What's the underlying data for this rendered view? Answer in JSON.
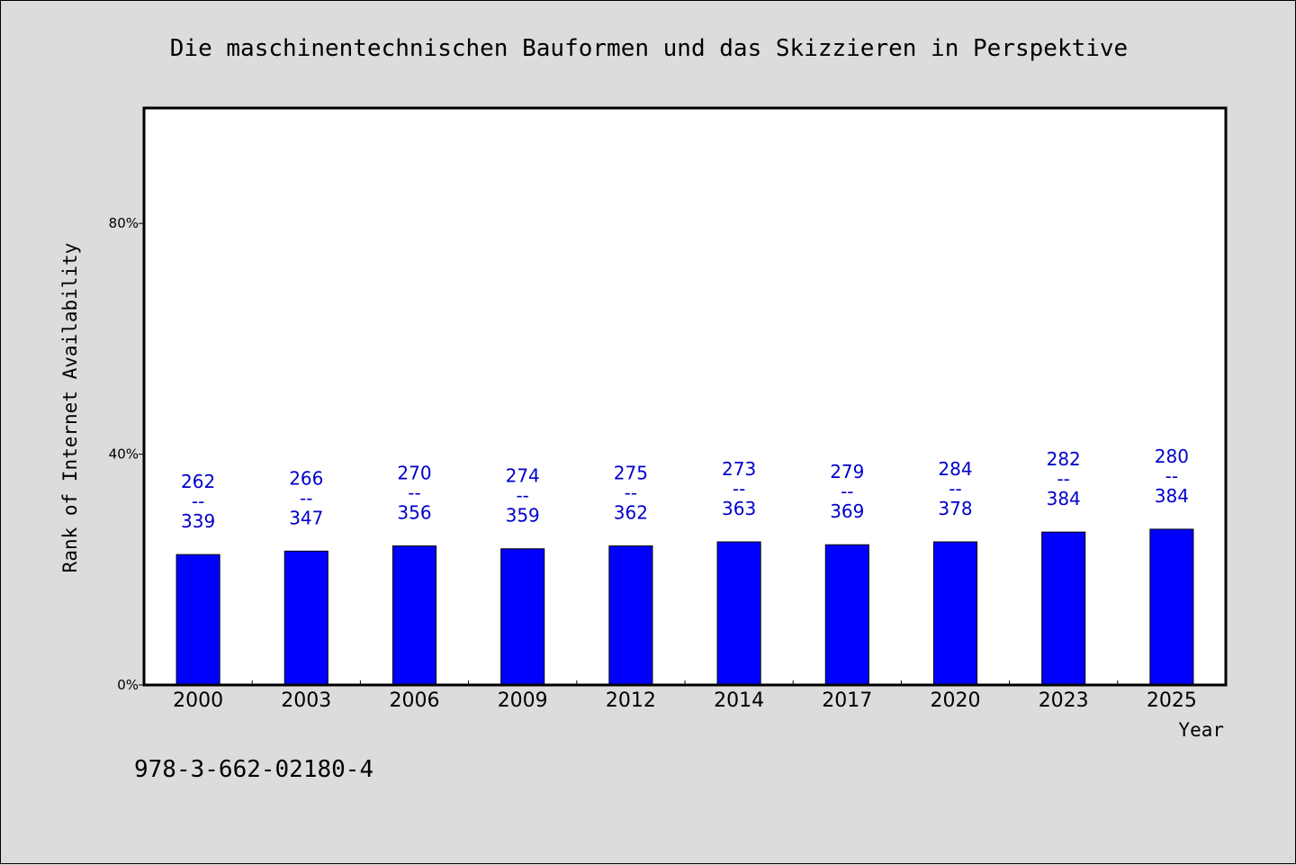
{
  "chart_data": {
    "type": "bar",
    "title": "Die maschinentechnischen Bauformen und das Skizzieren in Perspektive",
    "xlabel": "Year",
    "ylabel": "Rank of Internet Availability",
    "categories": [
      "2000",
      "2003",
      "2006",
      "2009",
      "2012",
      "2014",
      "2017",
      "2020",
      "2023",
      "2025"
    ],
    "values": [
      22.6,
      23.2,
      24.1,
      23.6,
      24.1,
      24.8,
      24.3,
      24.8,
      26.5,
      27.0
    ],
    "data_labels": [
      {
        "top": "262",
        "sep": "--",
        "bottom": "339"
      },
      {
        "top": "266",
        "sep": "--",
        "bottom": "347"
      },
      {
        "top": "270",
        "sep": "--",
        "bottom": "356"
      },
      {
        "top": "274",
        "sep": "--",
        "bottom": "359"
      },
      {
        "top": "275",
        "sep": "--",
        "bottom": "362"
      },
      {
        "top": "273",
        "sep": "--",
        "bottom": "363"
      },
      {
        "top": "279",
        "sep": "--",
        "bottom": "369"
      },
      {
        "top": "284",
        "sep": "--",
        "bottom": "378"
      },
      {
        "top": "282",
        "sep": "--",
        "bottom": "384"
      },
      {
        "top": "280",
        "sep": "--",
        "bottom": "384"
      }
    ],
    "yticks": [
      {
        "value": 0,
        "label": "0%"
      },
      {
        "value": 40,
        "label": "40%"
      },
      {
        "value": 80,
        "label": "80%"
      }
    ],
    "ylim": [
      0,
      100
    ],
    "grid": false,
    "bar_color": "#0000ff",
    "label_color": "#0000cc"
  },
  "footer_text": "978-3-662-02180-4"
}
